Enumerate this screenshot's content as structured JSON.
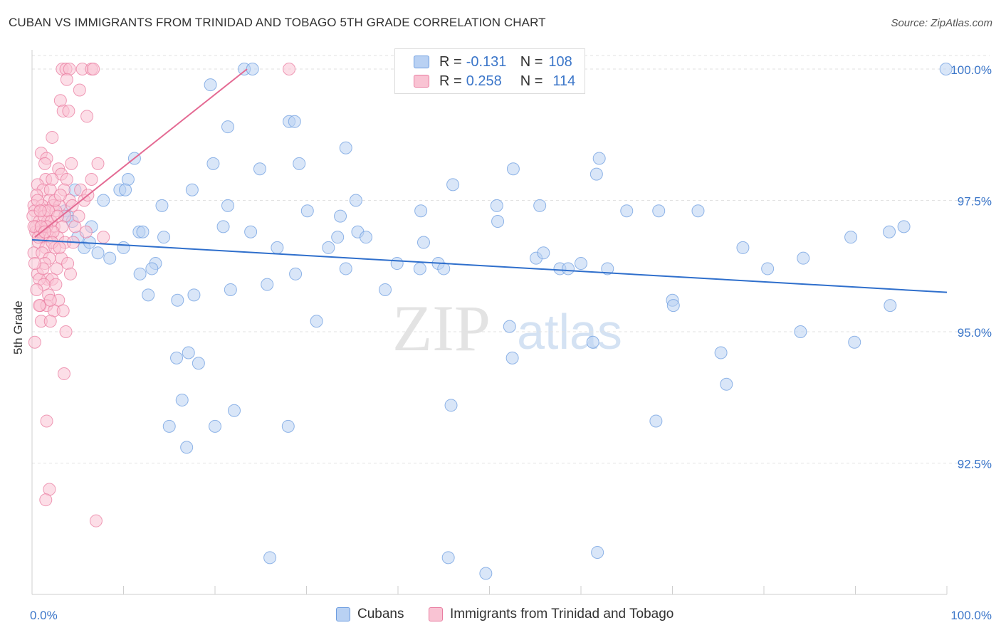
{
  "title": "CUBAN VS IMMIGRANTS FROM TRINIDAD AND TOBAGO 5TH GRADE CORRELATION CHART",
  "source": "Source: ZipAtlas.com",
  "watermark": {
    "part1": "ZIP",
    "part2": "atlas"
  },
  "legend": {
    "r_label": "R =",
    "n_label": "N =",
    "rows": [
      {
        "r": "-0.131",
        "n": "108",
        "color": "#6d9de0",
        "fill": "#b9d1f3"
      },
      {
        "r": "0.258",
        "n": "114",
        "color": "#e97ca0",
        "fill": "#f9c3d3"
      }
    ]
  },
  "chart_data": {
    "type": "scatter",
    "title": "CUBAN VS IMMIGRANTS FROM TRINIDAD AND TOBAGO 5TH GRADE CORRELATION CHART",
    "xlabel": "",
    "ylabel": "5th Grade",
    "xlim": [
      0,
      100
    ],
    "ylim": [
      90.0,
      100.3
    ],
    "x_tick_labels": [
      "0.0%",
      "100.0%"
    ],
    "y_ticks": [
      {
        "value": 100.0,
        "label": "100.0%"
      },
      {
        "value": 97.5,
        "label": "97.5%"
      },
      {
        "value": 95.0,
        "label": "95.0%"
      },
      {
        "value": 92.5,
        "label": "92.5%"
      }
    ],
    "grid": true,
    "series": [
      {
        "name": "Cubans",
        "color": "#6d9de0",
        "fill": "#b9d1f3",
        "trend": {
          "x": [
            0,
            100
          ],
          "y": [
            96.75,
            95.75
          ]
        },
        "points": [
          [
            23.2,
            100.0
          ],
          [
            24.1,
            100.0
          ],
          [
            99.9,
            100.0
          ],
          [
            19.5,
            99.7
          ],
          [
            21.4,
            98.9
          ],
          [
            28.1,
            99.0
          ],
          [
            28.7,
            99.0
          ],
          [
            34.3,
            98.5
          ],
          [
            11.2,
            98.3
          ],
          [
            19.8,
            98.2
          ],
          [
            24.9,
            98.1
          ],
          [
            29.2,
            98.2
          ],
          [
            61.7,
            98.0
          ],
          [
            62.0,
            98.3
          ],
          [
            52.6,
            98.1
          ],
          [
            10.5,
            97.9
          ],
          [
            46.0,
            97.8
          ],
          [
            4.7,
            97.7
          ],
          [
            7.8,
            97.5
          ],
          [
            9.6,
            97.7
          ],
          [
            10.2,
            97.7
          ],
          [
            17.5,
            97.7
          ],
          [
            35.4,
            97.5
          ],
          [
            14.2,
            97.4
          ],
          [
            21.4,
            97.4
          ],
          [
            30.1,
            97.3
          ],
          [
            33.7,
            97.2
          ],
          [
            42.5,
            97.3
          ],
          [
            50.8,
            97.4
          ],
          [
            65.0,
            97.3
          ],
          [
            68.5,
            97.3
          ],
          [
            72.8,
            97.3
          ],
          [
            3.6,
            97.3
          ],
          [
            3.9,
            97.2
          ],
          [
            4.4,
            97.1
          ],
          [
            6.5,
            97.0
          ],
          [
            11.7,
            96.9
          ],
          [
            12.1,
            96.9
          ],
          [
            14.4,
            96.8
          ],
          [
            20.9,
            97.0
          ],
          [
            23.9,
            96.9
          ],
          [
            26.8,
            96.6
          ],
          [
            32.4,
            96.6
          ],
          [
            33.4,
            96.8
          ],
          [
            35.6,
            96.9
          ],
          [
            36.5,
            96.8
          ],
          [
            42.8,
            96.7
          ],
          [
            50.9,
            97.1
          ],
          [
            55.5,
            97.4
          ],
          [
            5.0,
            96.8
          ],
          [
            5.7,
            96.6
          ],
          [
            6.3,
            96.7
          ],
          [
            7.2,
            96.5
          ],
          [
            8.5,
            96.4
          ],
          [
            10.0,
            96.6
          ],
          [
            13.5,
            96.3
          ],
          [
            13.1,
            96.2
          ],
          [
            28.8,
            96.1
          ],
          [
            34.3,
            96.2
          ],
          [
            39.9,
            96.3
          ],
          [
            42.4,
            96.2
          ],
          [
            44.4,
            96.3
          ],
          [
            45.0,
            96.2
          ],
          [
            55.1,
            96.4
          ],
          [
            55.9,
            96.5
          ],
          [
            57.7,
            96.2
          ],
          [
            58.6,
            96.2
          ],
          [
            60.0,
            96.3
          ],
          [
            62.9,
            96.2
          ],
          [
            11.8,
            96.1
          ],
          [
            12.7,
            95.7
          ],
          [
            15.9,
            95.6
          ],
          [
            17.7,
            95.7
          ],
          [
            21.7,
            95.8
          ],
          [
            25.7,
            95.9
          ],
          [
            31.1,
            95.2
          ],
          [
            38.6,
            95.8
          ],
          [
            52.2,
            95.1
          ],
          [
            61.3,
            94.8
          ],
          [
            70.0,
            95.6
          ],
          [
            70.1,
            95.5
          ],
          [
            15.8,
            94.5
          ],
          [
            17.1,
            94.6
          ],
          [
            18.2,
            94.4
          ],
          [
            52.5,
            94.5
          ],
          [
            75.3,
            94.6
          ],
          [
            75.9,
            94.0
          ],
          [
            16.4,
            93.7
          ],
          [
            22.1,
            93.5
          ],
          [
            20.0,
            93.2
          ],
          [
            15.0,
            93.2
          ],
          [
            16.9,
            92.8
          ],
          [
            28.0,
            93.2
          ],
          [
            45.8,
            93.6
          ],
          [
            68.2,
            93.3
          ],
          [
            84.0,
            95.0
          ],
          [
            80.4,
            96.2
          ],
          [
            77.7,
            96.6
          ],
          [
            84.3,
            96.4
          ],
          [
            89.9,
            94.8
          ],
          [
            89.5,
            96.8
          ],
          [
            93.7,
            96.9
          ],
          [
            95.3,
            97.0
          ],
          [
            93.8,
            95.5
          ],
          [
            26.0,
            90.7
          ],
          [
            45.5,
            90.7
          ],
          [
            61.8,
            90.8
          ],
          [
            49.6,
            90.4
          ]
        ]
      },
      {
        "name": "Immigrants from Trinidad and Tobago",
        "color": "#e97ca0",
        "fill": "#f9c3d3",
        "trend": {
          "x": [
            0.3,
            23.5
          ],
          "y": [
            96.8,
            100.0
          ]
        },
        "points": [
          [
            3.3,
            100.0
          ],
          [
            3.7,
            100.0
          ],
          [
            4.1,
            100.0
          ],
          [
            5.5,
            100.0
          ],
          [
            6.5,
            100.0
          ],
          [
            6.7,
            100.0
          ],
          [
            28.1,
            100.0
          ],
          [
            3.8,
            99.8
          ],
          [
            5.2,
            99.6
          ],
          [
            3.1,
            99.4
          ],
          [
            3.4,
            99.2
          ],
          [
            4.0,
            99.2
          ],
          [
            6.0,
            99.1
          ],
          [
            2.2,
            98.7
          ],
          [
            1.0,
            98.4
          ],
          [
            1.6,
            98.3
          ],
          [
            1.4,
            98.2
          ],
          [
            4.3,
            98.2
          ],
          [
            2.9,
            98.1
          ],
          [
            7.2,
            98.2
          ],
          [
            3.2,
            98.0
          ],
          [
            1.5,
            97.9
          ],
          [
            2.2,
            97.9
          ],
          [
            3.8,
            97.9
          ],
          [
            0.6,
            97.8
          ],
          [
            1.2,
            97.7
          ],
          [
            2.0,
            97.7
          ],
          [
            3.5,
            97.7
          ],
          [
            5.3,
            97.7
          ],
          [
            0.5,
            97.6
          ],
          [
            1.9,
            97.5
          ],
          [
            4.1,
            97.5
          ],
          [
            5.7,
            97.5
          ],
          [
            0.2,
            97.4
          ],
          [
            1.1,
            97.4
          ],
          [
            2.3,
            97.4
          ],
          [
            3.0,
            97.4
          ],
          [
            4.4,
            97.4
          ],
          [
            0.3,
            97.3
          ],
          [
            1.4,
            97.3
          ],
          [
            2.6,
            97.3
          ],
          [
            3.6,
            97.2
          ],
          [
            0.1,
            97.2
          ],
          [
            0.8,
            97.1
          ],
          [
            1.7,
            97.1
          ],
          [
            2.4,
            97.0
          ],
          [
            3.3,
            97.0
          ],
          [
            0.4,
            96.9
          ],
          [
            1.2,
            96.8
          ],
          [
            2.0,
            96.8
          ],
          [
            2.8,
            96.8
          ],
          [
            3.6,
            96.7
          ],
          [
            0.7,
            96.7
          ],
          [
            1.5,
            96.6
          ],
          [
            2.5,
            96.6
          ],
          [
            0.2,
            96.5
          ],
          [
            1.1,
            96.5
          ],
          [
            1.9,
            96.4
          ],
          [
            3.2,
            96.4
          ],
          [
            1.4,
            96.3
          ],
          [
            2.7,
            96.2
          ],
          [
            0.6,
            96.1
          ],
          [
            1.7,
            96.0
          ],
          [
            0.8,
            96.0
          ],
          [
            2.2,
            96.0
          ],
          [
            1.3,
            95.9
          ],
          [
            2.6,
            95.9
          ],
          [
            0.5,
            95.8
          ],
          [
            1.8,
            95.7
          ],
          [
            2.9,
            95.6
          ],
          [
            0.9,
            95.5
          ],
          [
            1.6,
            95.5
          ],
          [
            2.4,
            95.4
          ],
          [
            3.4,
            95.4
          ],
          [
            1.0,
            95.2
          ],
          [
            2.0,
            95.2
          ],
          [
            0.3,
            94.8
          ],
          [
            3.5,
            94.2
          ],
          [
            1.6,
            93.3
          ],
          [
            1.9,
            92.0
          ],
          [
            1.5,
            91.8
          ],
          [
            7.0,
            91.4
          ],
          [
            0.4,
            97.0
          ],
          [
            0.9,
            96.9
          ],
          [
            1.3,
            97.2
          ],
          [
            1.8,
            97.3
          ],
          [
            2.1,
            97.1
          ],
          [
            2.5,
            97.5
          ],
          [
            3.1,
            97.6
          ],
          [
            0.6,
            97.5
          ],
          [
            0.9,
            97.3
          ],
          [
            1.6,
            97.0
          ],
          [
            2.3,
            96.9
          ],
          [
            2.8,
            97.2
          ],
          [
            0.2,
            97.0
          ],
          [
            0.7,
            96.8
          ],
          [
            1.0,
            97.0
          ],
          [
            1.4,
            96.9
          ],
          [
            2.2,
            96.7
          ],
          [
            3.0,
            96.6
          ],
          [
            4.7,
            97.0
          ],
          [
            5.1,
            97.2
          ],
          [
            6.1,
            97.6
          ],
          [
            7.8,
            96.8
          ],
          [
            5.9,
            96.9
          ],
          [
            4.5,
            96.7
          ],
          [
            3.9,
            96.3
          ],
          [
            4.2,
            96.1
          ],
          [
            2.0,
            95.6
          ],
          [
            1.2,
            96.2
          ],
          [
            0.8,
            95.5
          ],
          [
            3.7,
            95.0
          ],
          [
            0.3,
            96.3
          ],
          [
            6.5,
            97.9
          ]
        ]
      }
    ]
  },
  "bottom_legend": [
    {
      "label": "Cubans",
      "color": "#6d9de0",
      "fill": "#b9d1f3"
    },
    {
      "label": "Immigrants from Trinidad and Tobago",
      "color": "#e97ca0",
      "fill": "#f9c3d3"
    }
  ]
}
